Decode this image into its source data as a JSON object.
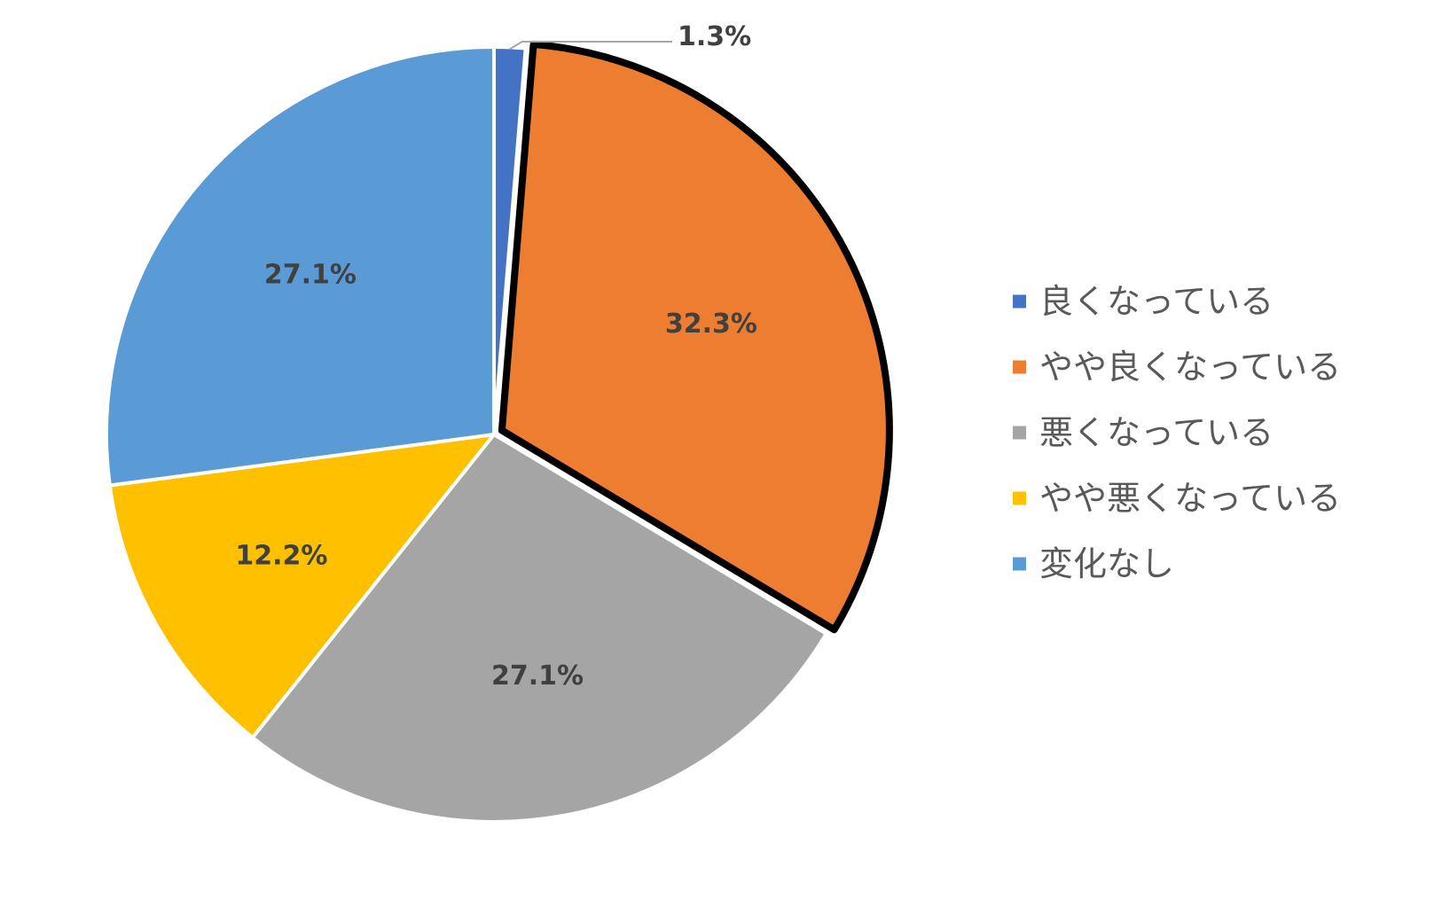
{
  "chart_data": {
    "type": "pie",
    "title": "",
    "categories": [
      "良くなっている",
      "やや良くなっている",
      "悪くなっている",
      "やや悪くなっている",
      "変化なし"
    ],
    "values": [
      1.3,
      32.3,
      27.1,
      12.2,
      27.1
    ],
    "data_labels": [
      "1.3%",
      "32.3%",
      "27.1%",
      "12.2%",
      "27.1%"
    ],
    "colors": [
      "#4472C4",
      "#ED7D31",
      "#A5A5A5",
      "#FFC000",
      "#5B9BD5"
    ],
    "highlighted_slice": "やや良くなっている",
    "start_angle": "12 o'clock",
    "direction": "clockwise",
    "legend_position": "right"
  }
}
